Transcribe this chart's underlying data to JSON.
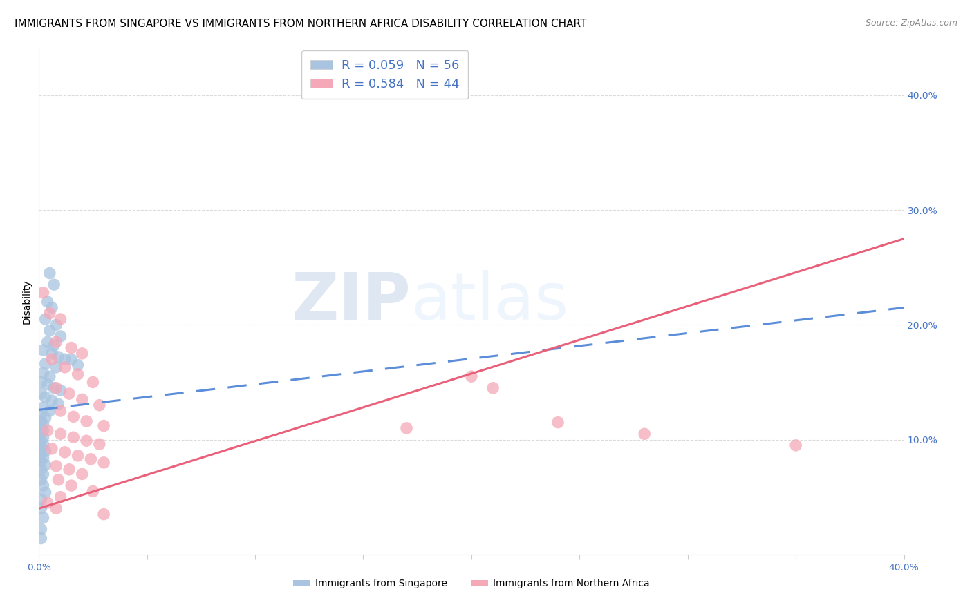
{
  "title": "IMMIGRANTS FROM SINGAPORE VS IMMIGRANTS FROM NORTHERN AFRICA DISABILITY CORRELATION CHART",
  "source": "Source: ZipAtlas.com",
  "ylabel": "Disability",
  "xlim": [
    0.0,
    0.4
  ],
  "ylim": [
    0.0,
    0.44
  ],
  "legend_label_blue": "R = 0.059   N = 56",
  "legend_label_pink": "R = 0.584   N = 44",
  "legend_label_blue_bottom": "Immigrants from Singapore",
  "legend_label_pink_bottom": "Immigrants from Northern Africa",
  "watermark_zip": "ZIP",
  "watermark_atlas": "atlas",
  "blue_color": "#a8c4e0",
  "pink_color": "#f4a8b8",
  "blue_line_color": "#5b8dd9",
  "pink_line_color": "#e8607a",
  "blue_scatter": [
    [
      0.005,
      0.245
    ],
    [
      0.007,
      0.235
    ],
    [
      0.004,
      0.22
    ],
    [
      0.006,
      0.215
    ],
    [
      0.003,
      0.205
    ],
    [
      0.008,
      0.2
    ],
    [
      0.005,
      0.195
    ],
    [
      0.01,
      0.19
    ],
    [
      0.004,
      0.185
    ],
    [
      0.007,
      0.182
    ],
    [
      0.002,
      0.178
    ],
    [
      0.006,
      0.175
    ],
    [
      0.009,
      0.172
    ],
    [
      0.012,
      0.17
    ],
    [
      0.003,
      0.166
    ],
    [
      0.008,
      0.163
    ],
    [
      0.002,
      0.158
    ],
    [
      0.005,
      0.155
    ],
    [
      0.001,
      0.15
    ],
    [
      0.004,
      0.148
    ],
    [
      0.007,
      0.145
    ],
    [
      0.01,
      0.143
    ],
    [
      0.001,
      0.14
    ],
    [
      0.003,
      0.137
    ],
    [
      0.006,
      0.134
    ],
    [
      0.009,
      0.131
    ],
    [
      0.002,
      0.128
    ],
    [
      0.005,
      0.125
    ],
    [
      0.001,
      0.122
    ],
    [
      0.003,
      0.119
    ],
    [
      0.001,
      0.116
    ],
    [
      0.002,
      0.113
    ],
    [
      0.001,
      0.11
    ],
    [
      0.002,
      0.108
    ],
    [
      0.001,
      0.105
    ],
    [
      0.002,
      0.102
    ],
    [
      0.001,
      0.099
    ],
    [
      0.002,
      0.096
    ],
    [
      0.001,
      0.093
    ],
    [
      0.003,
      0.09
    ],
    [
      0.001,
      0.087
    ],
    [
      0.002,
      0.084
    ],
    [
      0.001,
      0.081
    ],
    [
      0.003,
      0.078
    ],
    [
      0.001,
      0.074
    ],
    [
      0.002,
      0.07
    ],
    [
      0.001,
      0.065
    ],
    [
      0.002,
      0.06
    ],
    [
      0.003,
      0.054
    ],
    [
      0.001,
      0.048
    ],
    [
      0.001,
      0.04
    ],
    [
      0.002,
      0.032
    ],
    [
      0.001,
      0.022
    ],
    [
      0.001,
      0.014
    ],
    [
      0.015,
      0.17
    ],
    [
      0.018,
      0.165
    ]
  ],
  "pink_scatter": [
    [
      0.002,
      0.228
    ],
    [
      0.005,
      0.21
    ],
    [
      0.01,
      0.205
    ],
    [
      0.008,
      0.185
    ],
    [
      0.015,
      0.18
    ],
    [
      0.02,
      0.175
    ],
    [
      0.006,
      0.17
    ],
    [
      0.012,
      0.163
    ],
    [
      0.018,
      0.157
    ],
    [
      0.025,
      0.15
    ],
    [
      0.008,
      0.145
    ],
    [
      0.014,
      0.14
    ],
    [
      0.02,
      0.135
    ],
    [
      0.028,
      0.13
    ],
    [
      0.01,
      0.125
    ],
    [
      0.016,
      0.12
    ],
    [
      0.022,
      0.116
    ],
    [
      0.03,
      0.112
    ],
    [
      0.004,
      0.108
    ],
    [
      0.01,
      0.105
    ],
    [
      0.016,
      0.102
    ],
    [
      0.022,
      0.099
    ],
    [
      0.028,
      0.096
    ],
    [
      0.006,
      0.092
    ],
    [
      0.012,
      0.089
    ],
    [
      0.018,
      0.086
    ],
    [
      0.024,
      0.083
    ],
    [
      0.03,
      0.08
    ],
    [
      0.008,
      0.077
    ],
    [
      0.014,
      0.074
    ],
    [
      0.02,
      0.07
    ],
    [
      0.009,
      0.065
    ],
    [
      0.015,
      0.06
    ],
    [
      0.025,
      0.055
    ],
    [
      0.01,
      0.05
    ],
    [
      0.004,
      0.045
    ],
    [
      0.008,
      0.04
    ],
    [
      0.03,
      0.035
    ],
    [
      0.2,
      0.155
    ],
    [
      0.21,
      0.145
    ],
    [
      0.17,
      0.11
    ],
    [
      0.24,
      0.115
    ],
    [
      0.28,
      0.105
    ],
    [
      0.35,
      0.095
    ]
  ],
  "title_fontsize": 11,
  "source_fontsize": 9,
  "tick_fontsize": 10,
  "ylabel_fontsize": 10,
  "legend_fontsize": 13,
  "background_color": "#ffffff",
  "grid_color": "#d8d8d8"
}
